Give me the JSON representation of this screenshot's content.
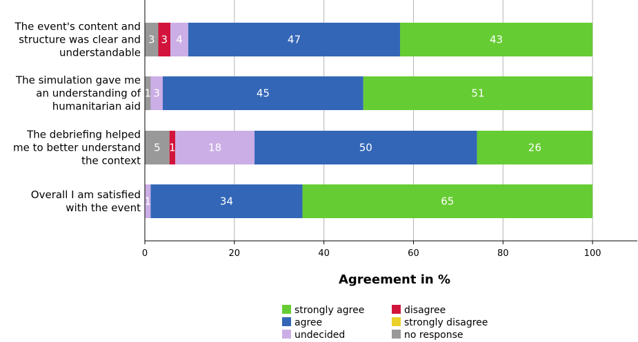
{
  "chart_data": {
    "type": "bar",
    "orientation": "horizontal",
    "stacked": true,
    "xlabel": "Agreement in %",
    "xlim": [
      0,
      110
    ],
    "xticks": [
      0,
      20,
      40,
      60,
      80,
      100
    ],
    "grid": true,
    "legend_position": "bottom",
    "categories": [
      [
        "The event's content and",
        "structure was clear and",
        "understandable"
      ],
      [
        "The simulation gave me",
        "an understanding of",
        "humanitarian aid"
      ],
      [
        "The debriefing helped",
        "me to better understand",
        "the context"
      ],
      [
        "Overall I am satisfied",
        "with the event"
      ]
    ],
    "series": [
      {
        "name": "no response",
        "color": "#999999",
        "values": [
          3,
          1.3,
          5.5,
          0
        ]
      },
      {
        "name": "strongly disagree",
        "color": "#ebd02b",
        "values": [
          0,
          0,
          0,
          0
        ]
      },
      {
        "name": "disagree",
        "color": "#d2143c",
        "values": [
          2.7,
          0,
          1.3,
          0
        ]
      },
      {
        "name": "undecided",
        "color": "#cbaee5",
        "values": [
          4,
          2.7,
          17.7,
          1.3
        ]
      },
      {
        "name": "agree",
        "color": "#3366b7",
        "values": [
          47.3,
          44.8,
          49.7,
          33.9
        ]
      },
      {
        "name": "strongly agree",
        "color": "#66cc33",
        "values": [
          43,
          51.2,
          25.8,
          64.8
        ]
      }
    ],
    "data_labels": [
      [
        "3",
        "",
        "3",
        "4",
        "47",
        "43"
      ],
      [
        "1",
        "",
        "",
        "3",
        "45",
        "51"
      ],
      [
        "5",
        "",
        "1",
        "18",
        "50",
        "26"
      ],
      [
        "",
        "",
        "",
        "1",
        "34",
        "65"
      ]
    ],
    "legend": [
      {
        "name": "strongly agree",
        "color": "#66cc33"
      },
      {
        "name": "disagree",
        "color": "#d2143c"
      },
      {
        "name": "agree",
        "color": "#3366b7"
      },
      {
        "name": "strongly disagree",
        "color": "#ebd02b"
      },
      {
        "name": "undecided",
        "color": "#cbaee5"
      },
      {
        "name": "no response",
        "color": "#999999"
      }
    ]
  }
}
